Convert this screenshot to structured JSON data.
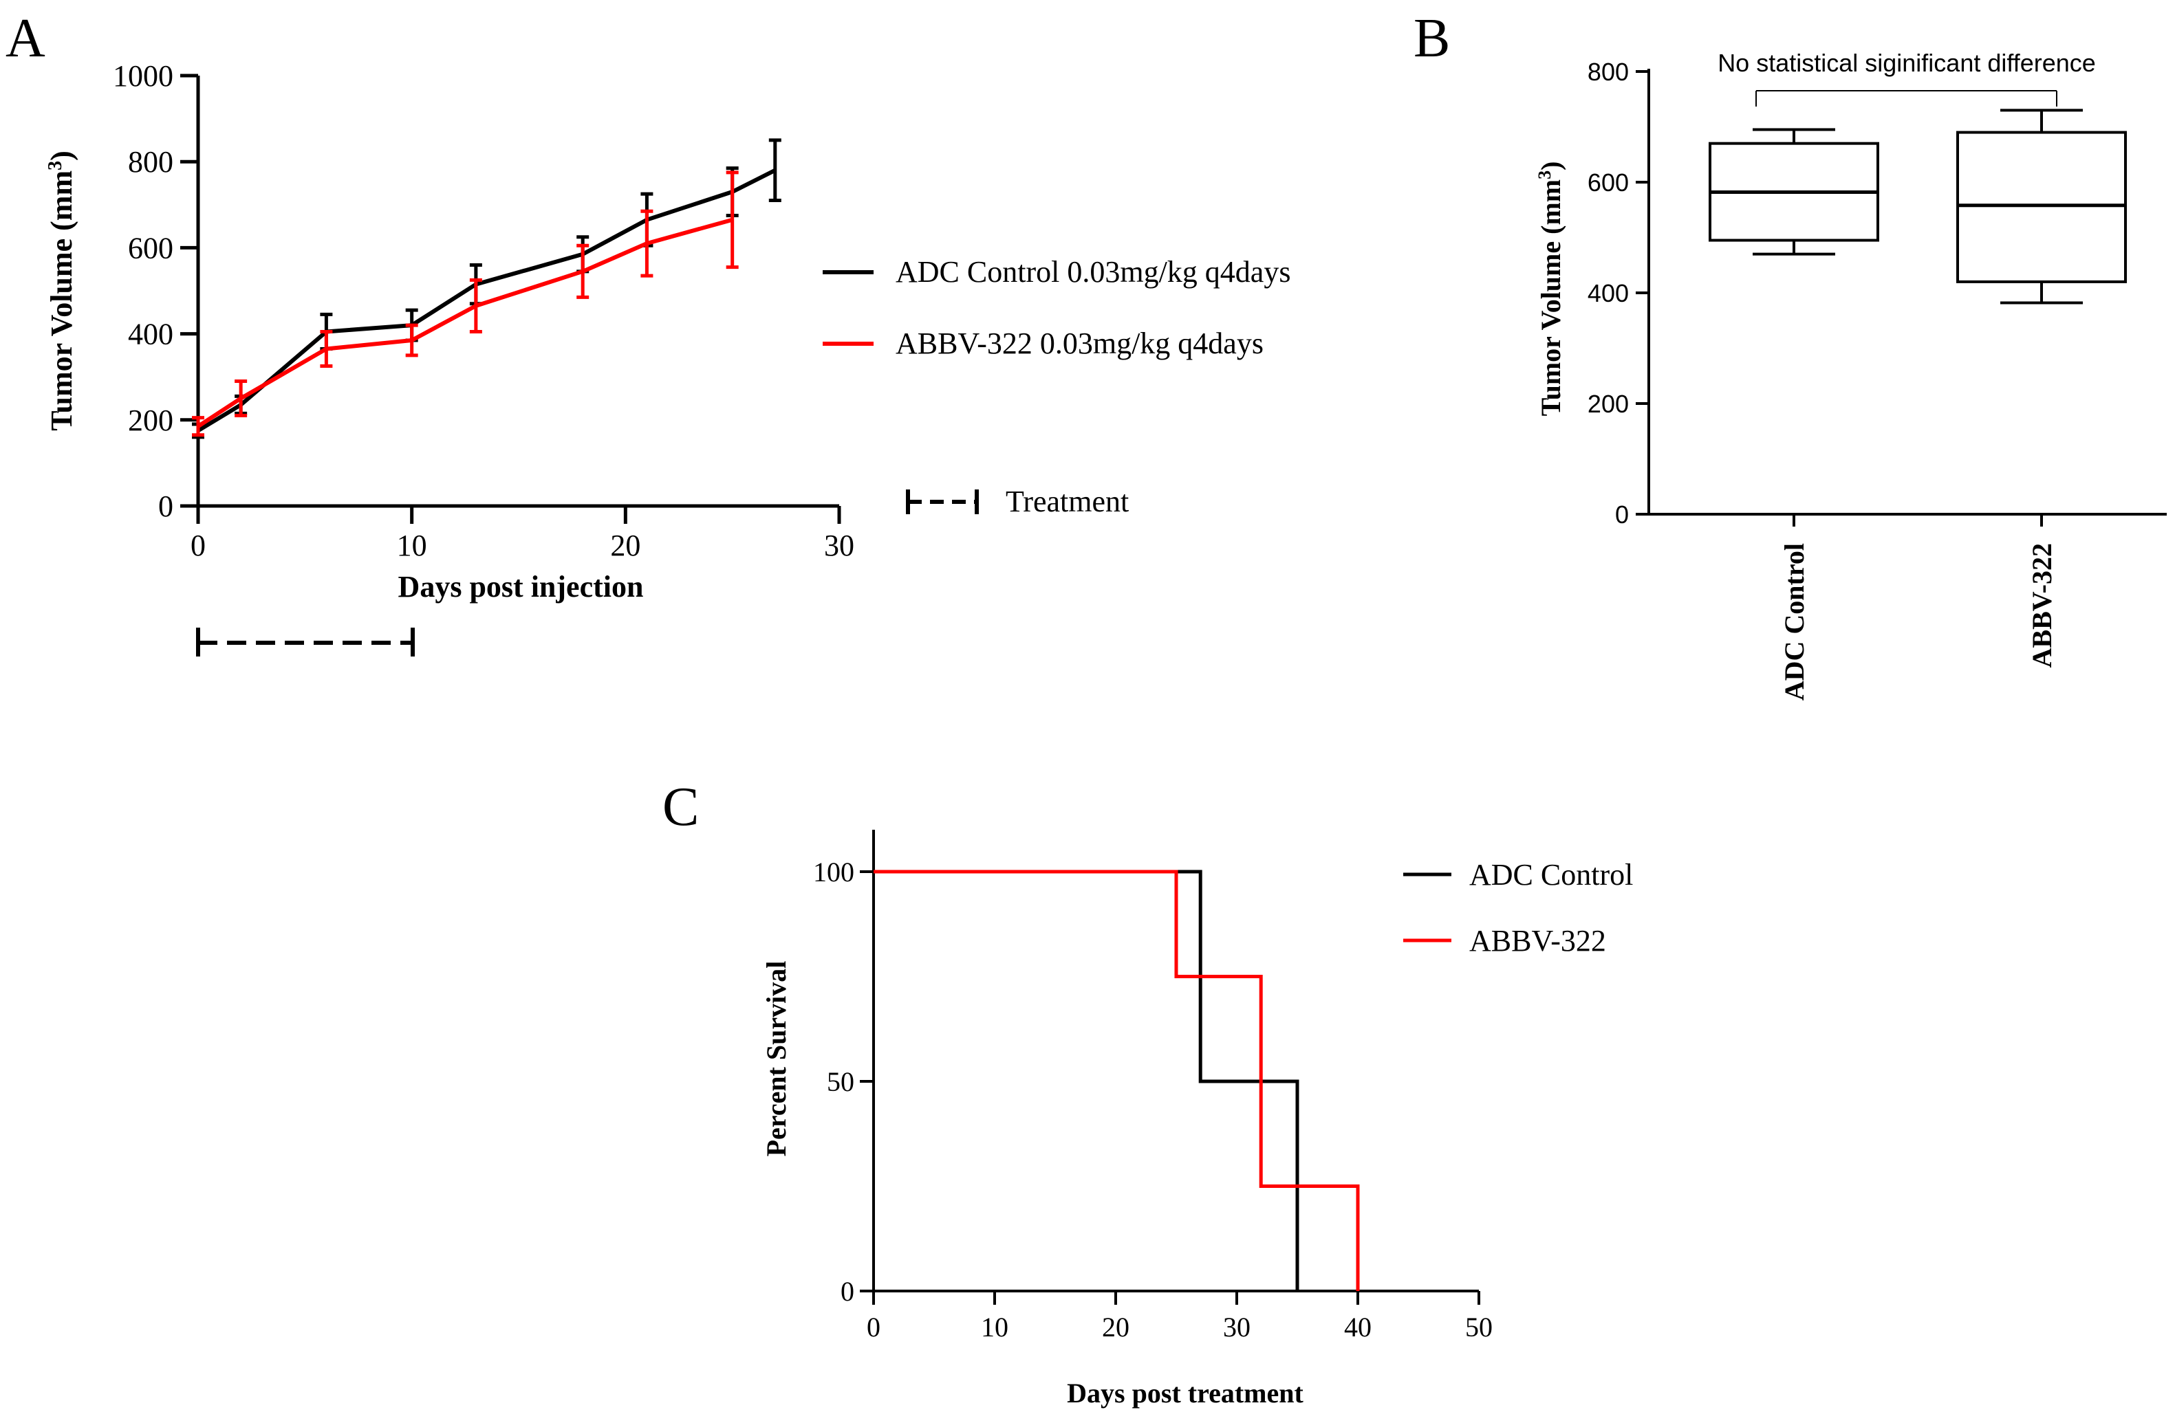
{
  "panel_labels": {
    "a": "A",
    "b": "B",
    "c": "C"
  },
  "colors": {
    "control": "#000000",
    "abbv": "#ff0000"
  },
  "chart_data": [
    {
      "id": "A",
      "type": "line",
      "xlabel": "Days post injection",
      "ylabel_main": "Tumor Volume (mm",
      "ylabel_sup": "3",
      "ylabel_close": ")",
      "xlim": [
        0,
        30
      ],
      "ylim": [
        0,
        1000
      ],
      "xticks": [
        0,
        10,
        20,
        30
      ],
      "yticks": [
        0,
        200,
        400,
        600,
        800,
        1000
      ],
      "series": [
        {
          "key": "control",
          "name": "ADC Control 0.03mg/kg q4days",
          "x": [
            0,
            2,
            6,
            10,
            13,
            18,
            21,
            25,
            27
          ],
          "y": [
            175,
            235,
            405,
            420,
            515,
            585,
            665,
            730,
            780
          ],
          "err": [
            15,
            20,
            40,
            35,
            45,
            40,
            60,
            55,
            70
          ]
        },
        {
          "key": "abbv",
          "name": "ABBV-322 0.03mg/kg q4days",
          "x": [
            0,
            2,
            6,
            10,
            13,
            18,
            21,
            25
          ],
          "y": [
            185,
            250,
            365,
            385,
            465,
            545,
            610,
            665
          ],
          "err": [
            20,
            40,
            40,
            35,
            60,
            60,
            75,
            110
          ]
        }
      ],
      "treatment": {
        "label": "Treatment",
        "start": 0,
        "end": 10
      }
    },
    {
      "id": "B",
      "type": "box",
      "ylabel_main": "Tumor Volume (mm",
      "ylabel_sup": "3",
      "ylabel_close": ")",
      "ylim": [
        0,
        800
      ],
      "yticks": [
        0,
        200,
        400,
        600,
        800
      ],
      "categories": [
        "ADC Control",
        "ABBV-322"
      ],
      "boxes": [
        {
          "min": 470,
          "q1": 495,
          "median": 582,
          "q3": 670,
          "max": 695
        },
        {
          "min": 382,
          "q1": 420,
          "median": 558,
          "q3": 690,
          "max": 730
        }
      ],
      "annotation": "No statistical siginificant difference"
    },
    {
      "id": "C",
      "type": "step",
      "xlabel": "Days post treatment",
      "ylabel": "Percent Survival",
      "xlim": [
        0,
        50
      ],
      "ylim": [
        0,
        110
      ],
      "xticks": [
        0,
        10,
        20,
        30,
        40,
        50
      ],
      "yticks": [
        0,
        50,
        100
      ],
      "series": [
        {
          "key": "control",
          "name": "ADC Control",
          "x": [
            0,
            27,
            35
          ],
          "y": [
            100,
            50,
            0
          ]
        },
        {
          "key": "abbv",
          "name": "ABBV-322",
          "x": [
            0,
            25,
            32,
            40
          ],
          "y": [
            100,
            75,
            25,
            0
          ]
        }
      ]
    }
  ]
}
